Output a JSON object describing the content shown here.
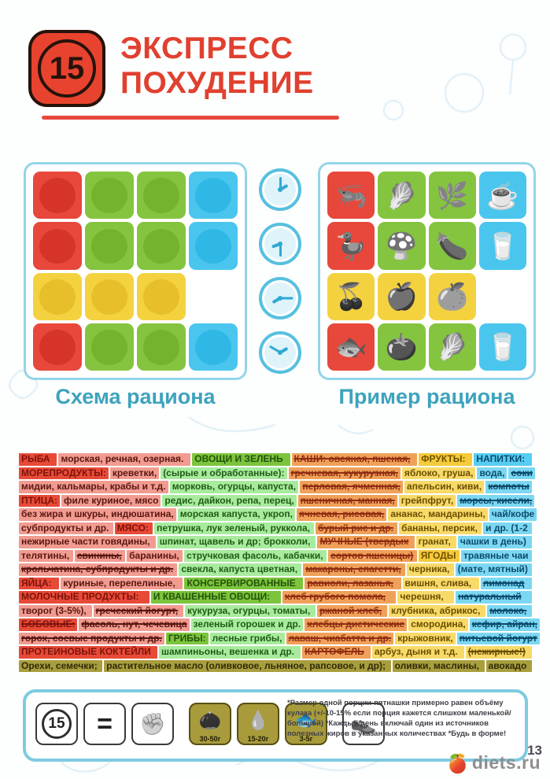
{
  "header": {
    "badge_number": "15",
    "title_line1": "ЭКСПРЕСС",
    "title_line2": "ПОХУДЕНИЕ"
  },
  "panels": {
    "left_label": "Схема рациона",
    "right_label": "Пример рациона",
    "schema_grid": [
      [
        "red",
        "green",
        "green",
        "blue"
      ],
      [
        "red",
        "green",
        "green",
        "blue"
      ],
      [
        "yellow",
        "yellow",
        "yellow",
        "empty"
      ],
      [
        "red",
        "green",
        "green",
        "blue"
      ]
    ],
    "example_grid": [
      [
        {
          "color": "red",
          "icon": "shrimp-icon",
          "glyph": "🦐"
        },
        {
          "color": "green",
          "icon": "cabbage-icon",
          "glyph": "🥬"
        },
        {
          "color": "green",
          "icon": "herbs-icon",
          "glyph": "🌿"
        },
        {
          "color": "blue",
          "icon": "coffee-cup-icon",
          "glyph": "☕"
        }
      ],
      [
        {
          "color": "red",
          "icon": "poultry-icon",
          "glyph": "🦆"
        },
        {
          "color": "green",
          "icon": "mushroom-icon",
          "glyph": "🍄"
        },
        {
          "color": "green",
          "icon": "eggplant-icon",
          "glyph": "🍆"
        },
        {
          "color": "blue",
          "icon": "water-glass-icon",
          "glyph": "🥛"
        }
      ],
      [
        {
          "color": "yellow",
          "icon": "cherries-icon",
          "glyph": "🍒"
        },
        {
          "color": "yellow",
          "icon": "apple-icon",
          "glyph": "🍎"
        },
        {
          "color": "yellow",
          "icon": "orange-slice-icon",
          "glyph": "🍊"
        },
        {
          "color": "empty",
          "icon": "",
          "glyph": ""
        }
      ],
      [
        {
          "color": "red",
          "icon": "fish-icon",
          "glyph": "🐟"
        },
        {
          "color": "green",
          "icon": "tomato-icon",
          "glyph": "🍅"
        },
        {
          "color": "green",
          "icon": "cabbage-icon",
          "glyph": "🥬"
        },
        {
          "color": "blue",
          "icon": "water-glass-icon",
          "glyph": "🥛"
        }
      ]
    ],
    "clocks": [
      {
        "hour_deg": 60,
        "minute_deg": 0
      },
      {
        "hour_deg": 250,
        "minute_deg": 180
      },
      {
        "hour_deg": 240,
        "minute_deg": 90
      },
      {
        "hour_deg": 60,
        "minute_deg": 300
      }
    ]
  },
  "food_table": {
    "lines": [
      [
        {
          "t": "РЫБА",
          "c": "rh"
        },
        {
          "t": "морская, речная, озерная.",
          "c": "p"
        },
        {
          "t": "ОВОЩИ И ЗЕЛЕНЬ",
          "c": "gh"
        },
        {
          "t": "КАШИ: овсяная, пшеная,",
          "c": "o",
          "s": 1
        },
        {
          "t": "ФРУКТЫ:",
          "c": "yh"
        },
        {
          "t": "НАПИТКИ:",
          "c": "bh"
        }
      ],
      [
        {
          "t": "МОРЕПРОДУКТЫ:",
          "c": "rh"
        },
        {
          "t": "креветки,",
          "c": "p"
        },
        {
          "t": "(сырые и обработанные):",
          "c": "g"
        },
        {
          "t": "гречневая, кукурузная,",
          "c": "o",
          "s": 1
        },
        {
          "t": "яблоко, груша,",
          "c": "y"
        },
        {
          "t": "вода,",
          "c": "b"
        },
        {
          "t": "соки",
          "c": "b",
          "s": 1
        }
      ],
      [
        {
          "t": "мидии, кальмары, крабы и т.д.",
          "c": "p"
        },
        {
          "t": "морковь, огурцы, капуста,",
          "c": "g"
        },
        {
          "t": "перловая, ячменная,",
          "c": "o",
          "s": 1
        },
        {
          "t": "апельсин, киви,",
          "c": "y"
        },
        {
          "t": "компоты",
          "c": "b",
          "s": 1
        }
      ],
      [
        {
          "t": "ПТИЦА:",
          "c": "rh"
        },
        {
          "t": "филе куриное, мясо",
          "c": "p"
        },
        {
          "t": "редис, дайкон, репа, перец,",
          "c": "g"
        },
        {
          "t": "пшеничная, манная,",
          "c": "o",
          "s": 1
        },
        {
          "t": "грейпфрут,",
          "c": "y"
        },
        {
          "t": "морсы, кисели,",
          "c": "b",
          "s": 1
        }
      ],
      [
        {
          "t": "без жира и шкуры, индюшатина,",
          "c": "p"
        },
        {
          "t": "морская капуста, укроп,",
          "c": "g"
        },
        {
          "t": "ячневая, рисовая,",
          "c": "o",
          "s": 1
        },
        {
          "t": "ананас, мандарины,",
          "c": "y"
        },
        {
          "t": "чай/кофе",
          "c": "b"
        }
      ],
      [
        {
          "t": "субпродукты и др.",
          "c": "p"
        },
        {
          "t": "МЯСО:",
          "c": "rh"
        },
        {
          "t": "петрушка, лук зеленый, руккола,",
          "c": "g"
        },
        {
          "t": "бурый рис и др.",
          "c": "o",
          "s": 1
        },
        {
          "t": "бананы, персик,",
          "c": "y"
        },
        {
          "t": "и др. (1-2",
          "c": "b"
        }
      ],
      [
        {
          "t": "нежирные части говядины,",
          "c": "p"
        },
        {
          "t": "шпинат, щавель и др; брокколи,",
          "c": "g"
        },
        {
          "t": "МУЧНЫЕ (твердых",
          "c": "o",
          "s": 1
        },
        {
          "t": "гранат,",
          "c": "y"
        },
        {
          "t": "чашки в день)",
          "c": "b"
        }
      ],
      [
        {
          "t": "телятины,",
          "c": "p"
        },
        {
          "t": "свинины,",
          "c": "p",
          "s": 1
        },
        {
          "t": "баранины,",
          "c": "p"
        },
        {
          "t": "стручковая фасоль, кабачки,",
          "c": "g"
        },
        {
          "t": "сортов пшеницы)",
          "c": "o",
          "s": 1
        },
        {
          "t": "ЯГОДЫ",
          "c": "yh"
        },
        {
          "t": "травяные чаи",
          "c": "b"
        }
      ],
      [
        {
          "t": "крольчатина, субпродукты и др.",
          "c": "p",
          "s": 1
        },
        {
          "t": "свекла, капуста цветная,",
          "c": "g"
        },
        {
          "t": "макароны, спагетти,",
          "c": "o",
          "s": 1
        },
        {
          "t": "черника,",
          "c": "y"
        },
        {
          "t": "(мате, мятный)",
          "c": "b"
        }
      ],
      [
        {
          "t": "ЯЙЦА:",
          "c": "rh"
        },
        {
          "t": "куриные, перепелиные,",
          "c": "p"
        },
        {
          "t": "КОНСЕРВИРОВАННЫЕ",
          "c": "gh"
        },
        {
          "t": "равиоли, лазанья,",
          "c": "o",
          "s": 1
        },
        {
          "t": "вишня, слива,",
          "c": "y"
        },
        {
          "t": "лимонад",
          "c": "b",
          "s": 1
        }
      ],
      [
        {
          "t": "МОЛОЧНЫЕ ПРОДУКТЫ:",
          "c": "rh"
        },
        {
          "t": "И КВАШЕННЫЕ ОВОЩИ:",
          "c": "gh"
        },
        {
          "t": "хлеб грубого помола,",
          "c": "o",
          "s": 1
        },
        {
          "t": "черешня,",
          "c": "y"
        },
        {
          "t": "натуральный",
          "c": "b",
          "s": 1
        }
      ],
      [
        {
          "t": "творог (3-5%),",
          "c": "p"
        },
        {
          "t": "греческий йогурт,",
          "c": "p",
          "s": 1
        },
        {
          "t": "кукуруза, огурцы, томаты,",
          "c": "g"
        },
        {
          "t": "ржаной хлеб,",
          "c": "o",
          "s": 1
        },
        {
          "t": "клубника, абрикос,",
          "c": "y"
        },
        {
          "t": "молоко,",
          "c": "b",
          "s": 1
        }
      ],
      [
        {
          "t": "БОБОВЫЕ:",
          "c": "rh",
          "s": 1
        },
        {
          "t": "фасоль, нут, чечевица",
          "c": "p",
          "s": 1
        },
        {
          "t": "зеленый горошек и др.",
          "c": "g"
        },
        {
          "t": "хлебцы диетические",
          "c": "o",
          "s": 1
        },
        {
          "t": "смородина,",
          "c": "y"
        },
        {
          "t": "кефир, айран,",
          "c": "b",
          "s": 1
        }
      ],
      [
        {
          "t": "горох, соевые продукты и др.",
          "c": "p",
          "s": 1
        },
        {
          "t": "ГРИБЫ:",
          "c": "gh"
        },
        {
          "t": "лесные грибы,",
          "c": "g"
        },
        {
          "t": "лаваш, чиабатта и др.",
          "c": "o",
          "s": 1
        },
        {
          "t": "крыжовник,",
          "c": "y"
        },
        {
          "t": "питьевой йогурт",
          "c": "b",
          "s": 1
        }
      ],
      [
        {
          "t": "ПРОТЕИНОВЫЕ КОКТЕЙЛИ",
          "c": "rh"
        },
        {
          "t": "шампиньоны, вешенка и др.",
          "c": "g"
        },
        {
          "t": "КАРТОФЕЛЬ",
          "c": "o",
          "s": 1
        },
        {
          "t": "арбуз, дыня и т.д.",
          "c": "y"
        },
        {
          "t": "(нежирные!)",
          "c": "y",
          "s": 1
        }
      ],
      [
        {
          "t": "Орехи, семечки;",
          "c": "ol"
        },
        {
          "t": "растительное масло (оливковое, льняное, рапсовое, и др);",
          "c": "ol"
        },
        {
          "t": "оливки, маслины,",
          "c": "ol"
        },
        {
          "t": "авокадо",
          "c": "ol"
        }
      ]
    ]
  },
  "footer": {
    "icons": [
      {
        "name": "badge-15-icon",
        "style": "white",
        "circle": "15"
      },
      {
        "name": "equals-icon",
        "style": "white",
        "eq": "="
      },
      {
        "name": "fist-icon",
        "style": "white",
        "glyph": "✊",
        "gray": true
      },
      {
        "name": "nuts-icon",
        "style": "olive",
        "glyph": "🌰",
        "label": "30-50г",
        "gray": true,
        "gapBefore": true
      },
      {
        "name": "oil-drop-icon",
        "style": "olive",
        "glyph": "💧",
        "label": "15-20г",
        "gray": true
      },
      {
        "name": "oily-fish-icon",
        "style": "olive",
        "glyph": "🐟",
        "label": "3-5г"
      },
      {
        "name": "sneakers-icon",
        "style": "white",
        "glyph": "👟",
        "gray": true,
        "gapBefore": true
      }
    ],
    "note": "*Размер одной порции-пятнашки примерно равен объёму кулака (+/-10-15% если порция кажется слишком маленькой/большой) *Каждый день включай один из источников полезных жиров в указанных количествах *Будь в форме!"
  },
  "branding": {
    "site": "diets.ru",
    "page_number": "13"
  },
  "colors": {
    "accent_red": "#e8432e",
    "tile_red": "#e8473b",
    "tile_green": "#84c43f",
    "tile_blue": "#4ac6ee",
    "tile_yellow": "#f4d23f",
    "panel_border": "#93d5e8",
    "label_teal": "#3da3bd",
    "olive": "#a89b3c"
  }
}
